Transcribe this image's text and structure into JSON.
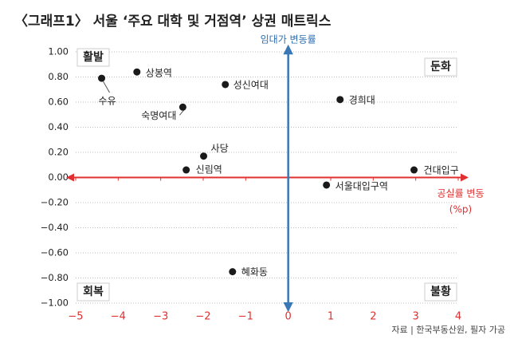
{
  "chart_data": {
    "type": "scatter",
    "title": "〈그래프1〉 서울 ‘주요 대학 및 거점역’ 상권 매트릭스",
    "y_label": "임대가 변동률",
    "x_label": "공실률 변동",
    "x_unit": "(%p)",
    "quadrants": [
      "활발",
      "둔화",
      "회복",
      "불황"
    ],
    "source": "자료 | 한국부동산원, 필자 가공",
    "color": "#1a1a1a",
    "labels": [
      "수유",
      "상봉역",
      "성신여대",
      "경희대",
      "숙명여대",
      "사당",
      "신림역",
      "건대입구",
      "서울대입구역",
      "혜화동"
    ],
    "x": [
      -4.39,
      -3.56,
      -1.48,
      1.22,
      -2.48,
      -1.99,
      -2.4,
      2.96,
      0.9,
      -1.31
    ],
    "y": [
      0.79,
      0.84,
      0.74,
      0.62,
      0.56,
      0.17,
      0.06,
      0.06,
      -0.06,
      -0.75
    ],
    "xlim": [
      -5,
      4
    ],
    "ylim": [
      -1,
      1
    ],
    "xticks": [
      {
        "value": -5,
        "label": "−5"
      },
      {
        "value": -4,
        "label": "−4"
      },
      {
        "value": -3,
        "label": "−3"
      },
      {
        "value": -2,
        "label": "−2"
      },
      {
        "value": -1,
        "label": "−1"
      },
      0,
      1,
      2,
      3,
      4
    ],
    "yticks": [
      {
        "value": 1,
        "label": "1.00"
      },
      {
        "value": 0.8,
        "label": "0.80"
      },
      {
        "value": 0.6,
        "label": "0.60"
      },
      {
        "value": 0.4,
        "label": "0.40"
      },
      {
        "value": 0.2,
        "label": "0.20"
      },
      {
        "value": 0,
        "label": "0.00"
      },
      {
        "value": -0.2,
        "label": "−0.20"
      },
      {
        "value": -0.4,
        "label": "−0.40"
      },
      {
        "value": -0.6,
        "label": "−0.60"
      },
      {
        "value": -0.8,
        "label": "−0.80"
      },
      {
        "value": -1,
        "label": "−1.00"
      }
    ],
    "grid": true
  }
}
